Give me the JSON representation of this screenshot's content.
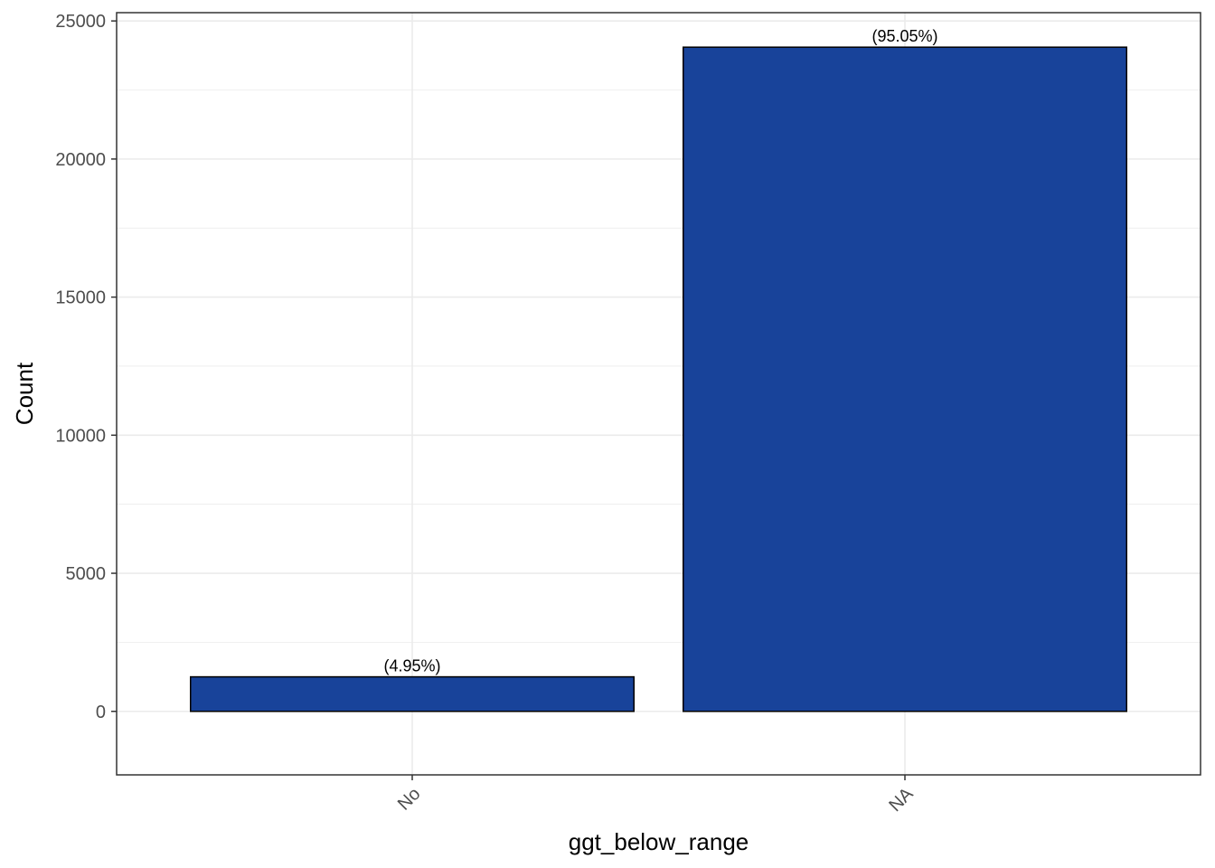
{
  "chart_data": {
    "type": "bar",
    "categories": [
      "No",
      "NA"
    ],
    "values": [
      1250,
      24050
    ],
    "labels": [
      "(4.95%)",
      "(95.05%)"
    ],
    "xlabel": "ggt_below_range",
    "ylabel": "Count",
    "ylim": [
      -2300,
      25300
    ],
    "yticks": [
      0,
      5000,
      10000,
      15000,
      20000,
      25000
    ],
    "grid": true,
    "colors": {
      "bar_fill": "#18439A",
      "bar_stroke": "#000000",
      "grid": "#EBEBEB",
      "panel_border": "#333333"
    }
  }
}
